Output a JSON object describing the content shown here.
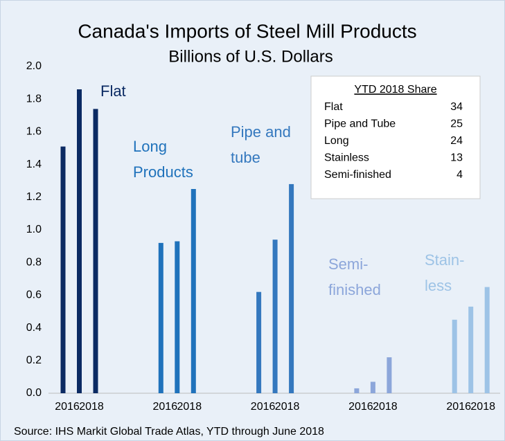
{
  "chart_data": {
    "type": "bar",
    "title": "Canada's Imports of Steel Mill Products",
    "subtitle": "Billions of U.S. Dollars",
    "source": "Source: IHS Markit Global Trade Atlas, YTD through June 2018",
    "categories": [
      "2016",
      null,
      "2018"
    ],
    "series": [
      {
        "name": "Flat",
        "color": "#0b2a63",
        "values": [
          1.51,
          1.86,
          1.74
        ]
      },
      {
        "name": "Long\nProducts",
        "color": "#1f72bb",
        "values": [
          0.92,
          0.93,
          1.25
        ]
      },
      {
        "name": "Pipe and\ntube",
        "color": "#3478be",
        "values": [
          0.62,
          0.94,
          1.28
        ]
      },
      {
        "name": "Semi-\nfinished",
        "color": "#8ca6da",
        "values": [
          0.03,
          0.07,
          0.22
        ]
      },
      {
        "name": "Stain-\nless",
        "color": "#9dc3e6",
        "values": [
          0.45,
          0.53,
          0.65
        ]
      }
    ],
    "ylim": [
      0,
      2
    ],
    "yticks": [
      {
        "value": 0,
        "label": "0.0"
      },
      {
        "value": 0.2,
        "label": "0.2"
      },
      {
        "value": 0.4,
        "label": "0.4"
      },
      {
        "value": 0.6,
        "label": "0.6"
      },
      {
        "value": 0.8,
        "label": "0.8"
      },
      {
        "value": 1,
        "label": "1.0"
      },
      {
        "value": 1.2,
        "label": "1.2"
      },
      {
        "value": 1.4,
        "label": "1.4"
      },
      {
        "value": 1.6,
        "label": "1.6"
      },
      {
        "value": 1.8,
        "label": "1.8"
      },
      {
        "value": 2,
        "label": "2.0"
      }
    ],
    "share_table": {
      "title": "YTD 2018 Share",
      "rows": [
        [
          "Flat",
          34
        ],
        [
          "Pipe and Tube",
          25
        ],
        [
          "Long",
          24
        ],
        [
          "Stainless",
          13
        ],
        [
          "Semi-finished",
          4
        ]
      ]
    }
  }
}
